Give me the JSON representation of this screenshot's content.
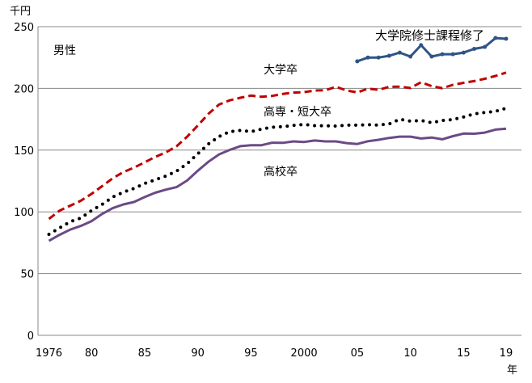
{
  "chart_data": {
    "type": "line",
    "title": "",
    "ylabel": "千円",
    "xlabel": "年",
    "panel_label": "男性",
    "ylim": [
      0,
      250
    ],
    "yticks": [
      0,
      50,
      100,
      150,
      200,
      250
    ],
    "xlim": [
      1975,
      2020
    ],
    "xticks": [
      {
        "year": 1976,
        "label": "1976"
      },
      {
        "year": 1980,
        "label": "80"
      },
      {
        "year": 1985,
        "label": "85"
      },
      {
        "year": 1990,
        "label": "90"
      },
      {
        "year": 1995,
        "label": "95"
      },
      {
        "year": 2000,
        "label": "2000"
      },
      {
        "year": 2005,
        "label": "05"
      },
      {
        "year": 2010,
        "label": "10"
      },
      {
        "year": 2015,
        "label": "15"
      },
      {
        "year": 2019,
        "label": "19"
      }
    ],
    "grid": "horizontal",
    "series": [
      {
        "name": "大学院修士課程修了",
        "color": "#2f5485",
        "style": "solid-markers",
        "start": 2005,
        "values": [
          221.9,
          225,
          225,
          226.4,
          229,
          225.8,
          235,
          225.8,
          227.7,
          227.7,
          229,
          232,
          233.6,
          240.8,
          240.2
        ]
      },
      {
        "name": "大学卒",
        "color": "#c00000",
        "style": "dashed",
        "start": 1976,
        "values": [
          94.3,
          101,
          105,
          109,
          114.5,
          120.8,
          127.2,
          132.2,
          135.8,
          140.1,
          144.5,
          148.2,
          153.1,
          160.9,
          169.9,
          179.4,
          186.9,
          190.3,
          192.4,
          194.2,
          193.2,
          193.9,
          195.5,
          196.6,
          196.9,
          198.3,
          198.5,
          201.3,
          198.3,
          196.7,
          199.8,
          198.8,
          201.3,
          201.4,
          200.3,
          205.0,
          201.8,
          200.2,
          202.9,
          204.5,
          205.9,
          207.8,
          210.1,
          212.8
        ]
      },
      {
        "name": "高専・短大卒",
        "color": "#000000",
        "style": "dotted",
        "start": 1976,
        "values": [
          81.8,
          87,
          92,
          95,
          101,
          106,
          112,
          116,
          119,
          123,
          126,
          129,
          133,
          139,
          147,
          155,
          161,
          165,
          166,
          165,
          167,
          168.6,
          169,
          170,
          170.8,
          169.8,
          169.7,
          169.5,
          170.2,
          170.2,
          170.6,
          170.3,
          171.2,
          175,
          173.4,
          174,
          172.2,
          174,
          174.8,
          176.9,
          179.3,
          180.5,
          181.4,
          183.9
        ]
      },
      {
        "name": "高校卒",
        "color": "#6b4a86",
        "style": "solid",
        "start": 1976,
        "values": [
          76.5,
          81.4,
          85.6,
          88.6,
          92.5,
          98.3,
          103,
          106,
          108,
          112,
          115.5,
          118,
          120,
          125.4,
          133.3,
          140.6,
          146.5,
          150.2,
          153.2,
          154,
          154,
          156,
          155.9,
          157.1,
          156.6,
          157.8,
          157.1,
          157.1,
          155.7,
          155,
          157.2,
          158.4,
          159.9,
          160.9,
          160.9,
          159.4,
          160.2,
          158.8,
          161.3,
          163.4,
          163.3,
          164.2,
          166.6,
          167.4
        ]
      }
    ]
  }
}
